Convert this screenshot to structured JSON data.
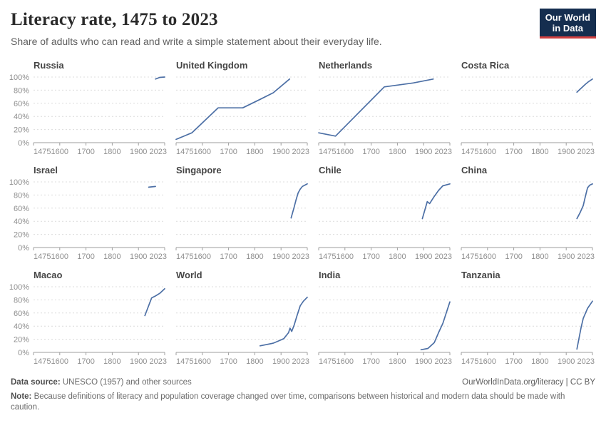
{
  "header": {
    "title": "Literacy rate, 1475 to 2023",
    "subtitle": "Share of adults who can read and write a simple statement about their everyday life.",
    "logo_line1": "Our World",
    "logo_line2": "in Data"
  },
  "footer": {
    "datasource_label": "Data source:",
    "datasource_text": " UNESCO (1957) and other sources",
    "note_label": "Note:",
    "note_text": " Because definitions of literacy and population coverage changed over time, comparisons between historical and modern data should be made with caution.",
    "link": "OurWorldInData.org/literacy | CC BY"
  },
  "chart_data": {
    "type": "line",
    "title": "Literacy rate, 1475 to 2023",
    "layout": {
      "rows": 3,
      "cols": 4,
      "grid": "dashed horizontal gridlines, y labels only on first column"
    },
    "line_color": "#4c6fa5",
    "grid_color": "#dcdcdc",
    "axis_color": "#9e9e9e",
    "xlabel": "",
    "ylabel": "",
    "ylim": [
      0,
      100
    ],
    "x_ticks": [
      1475,
      1600,
      1700,
      1800,
      1900,
      2023
    ],
    "y_ticks": [
      "0%",
      "20%",
      "40%",
      "60%",
      "80%",
      "100%"
    ],
    "x_scale_note": "tick years are evenly spaced along the axis (piecewise-linear year scale)",
    "series": [
      {
        "name": "Russia",
        "points": [
          [
            1980,
            97
          ],
          [
            2000,
            99.5
          ],
          [
            2023,
            100
          ]
        ]
      },
      {
        "name": "United Kingdom",
        "points": [
          [
            1475,
            5
          ],
          [
            1550,
            15
          ],
          [
            1660,
            53
          ],
          [
            1754,
            53
          ],
          [
            1820,
            66
          ],
          [
            1870,
            76
          ],
          [
            1940,
            97
          ]
        ]
      },
      {
        "name": "Netherlands",
        "points": [
          [
            1475,
            15
          ],
          [
            1555,
            10
          ],
          [
            1750,
            85
          ],
          [
            1860,
            91
          ],
          [
            1945,
            97
          ]
        ]
      },
      {
        "name": "Costa Rica",
        "points": [
          [
            1950,
            77
          ],
          [
            1990,
            89
          ],
          [
            2005,
            93
          ],
          [
            2023,
            97
          ]
        ]
      },
      {
        "name": "Israel",
        "points": [
          [
            1948,
            92
          ],
          [
            1980,
            93
          ]
        ]
      },
      {
        "name": "Singapore",
        "points": [
          [
            1947,
            45
          ],
          [
            1960,
            60
          ],
          [
            1970,
            72
          ],
          [
            1980,
            83
          ],
          [
            1990,
            89
          ],
          [
            2000,
            93
          ],
          [
            2023,
            97
          ]
        ]
      },
      {
        "name": "Chile",
        "points": [
          [
            1895,
            44
          ],
          [
            1917,
            70
          ],
          [
            1928,
            67
          ],
          [
            1950,
            78
          ],
          [
            1970,
            87
          ],
          [
            1990,
            94
          ],
          [
            2023,
            97
          ]
        ]
      },
      {
        "name": "China",
        "points": [
          [
            1950,
            44
          ],
          [
            1965,
            53
          ],
          [
            1980,
            64
          ],
          [
            1990,
            78
          ],
          [
            2000,
            91
          ],
          [
            2010,
            95
          ],
          [
            2023,
            97
          ]
        ]
      },
      {
        "name": "Macao",
        "points": [
          [
            1930,
            56
          ],
          [
            1962,
            83
          ],
          [
            1980,
            86
          ],
          [
            2000,
            90
          ],
          [
            2023,
            97
          ]
        ]
      },
      {
        "name": "World",
        "points": [
          [
            1820,
            10
          ],
          [
            1870,
            14
          ],
          [
            1900,
            19
          ],
          [
            1913,
            21
          ],
          [
            1935,
            30
          ],
          [
            1942,
            37
          ],
          [
            1950,
            32
          ],
          [
            1962,
            42
          ],
          [
            1975,
            56
          ],
          [
            1990,
            71
          ],
          [
            2005,
            78
          ],
          [
            2023,
            84
          ]
        ]
      },
      {
        "name": "India",
        "points": [
          [
            1890,
            4
          ],
          [
            1920,
            6
          ],
          [
            1950,
            15
          ],
          [
            1970,
            30
          ],
          [
            1990,
            44
          ],
          [
            2010,
            64
          ],
          [
            2023,
            77
          ]
        ]
      },
      {
        "name": "Tanzania",
        "points": [
          [
            1950,
            5
          ],
          [
            1970,
            38
          ],
          [
            1980,
            52
          ],
          [
            2000,
            67
          ],
          [
            2023,
            78
          ]
        ]
      }
    ]
  }
}
